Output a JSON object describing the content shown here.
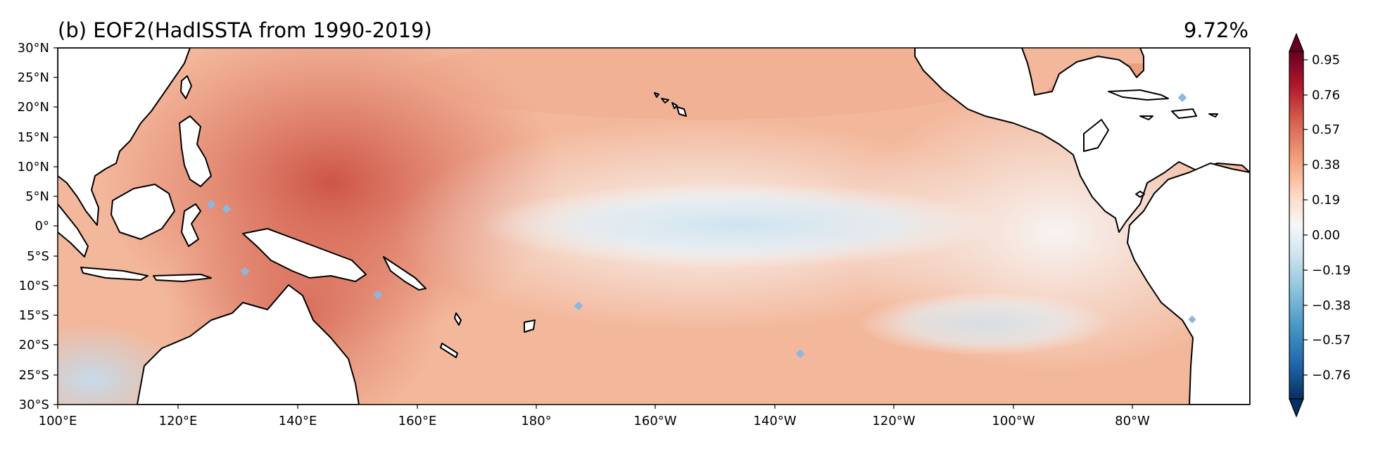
{
  "title_left": "(b) EOF2(HadISSTA from 1990-2019)",
  "title_right": "9.72%",
  "map": {
    "lon_ticks": [
      "100°E",
      "120°E",
      "140°E",
      "160°E",
      "180°",
      "160°W",
      "140°W",
      "120°W",
      "100°W",
      "80°W"
    ],
    "lat_ticks": [
      "30°N",
      "25°N",
      "20°N",
      "15°N",
      "10°N",
      "5°N",
      "0°",
      "5°S",
      "10°S",
      "15°S",
      "20°S",
      "25°S",
      "30°S"
    ]
  },
  "colorbar": {
    "ticks": [
      "0.95",
      "0.76",
      "0.57",
      "0.38",
      "0.19",
      "0.00",
      "−0.19",
      "−0.38",
      "−0.57",
      "−0.76"
    ],
    "colors": {
      "dark_red": "#67001f",
      "red": "#b2182b",
      "light_red": "#d6604d",
      "salmon": "#f4a582",
      "peach": "#fddbc7",
      "white": "#f7f7f7",
      "pale_blue": "#d1e5f0",
      "light_blue": "#92c5de",
      "blue": "#4393c3",
      "mid_blue": "#2166ac",
      "dark_blue": "#053061"
    }
  }
}
